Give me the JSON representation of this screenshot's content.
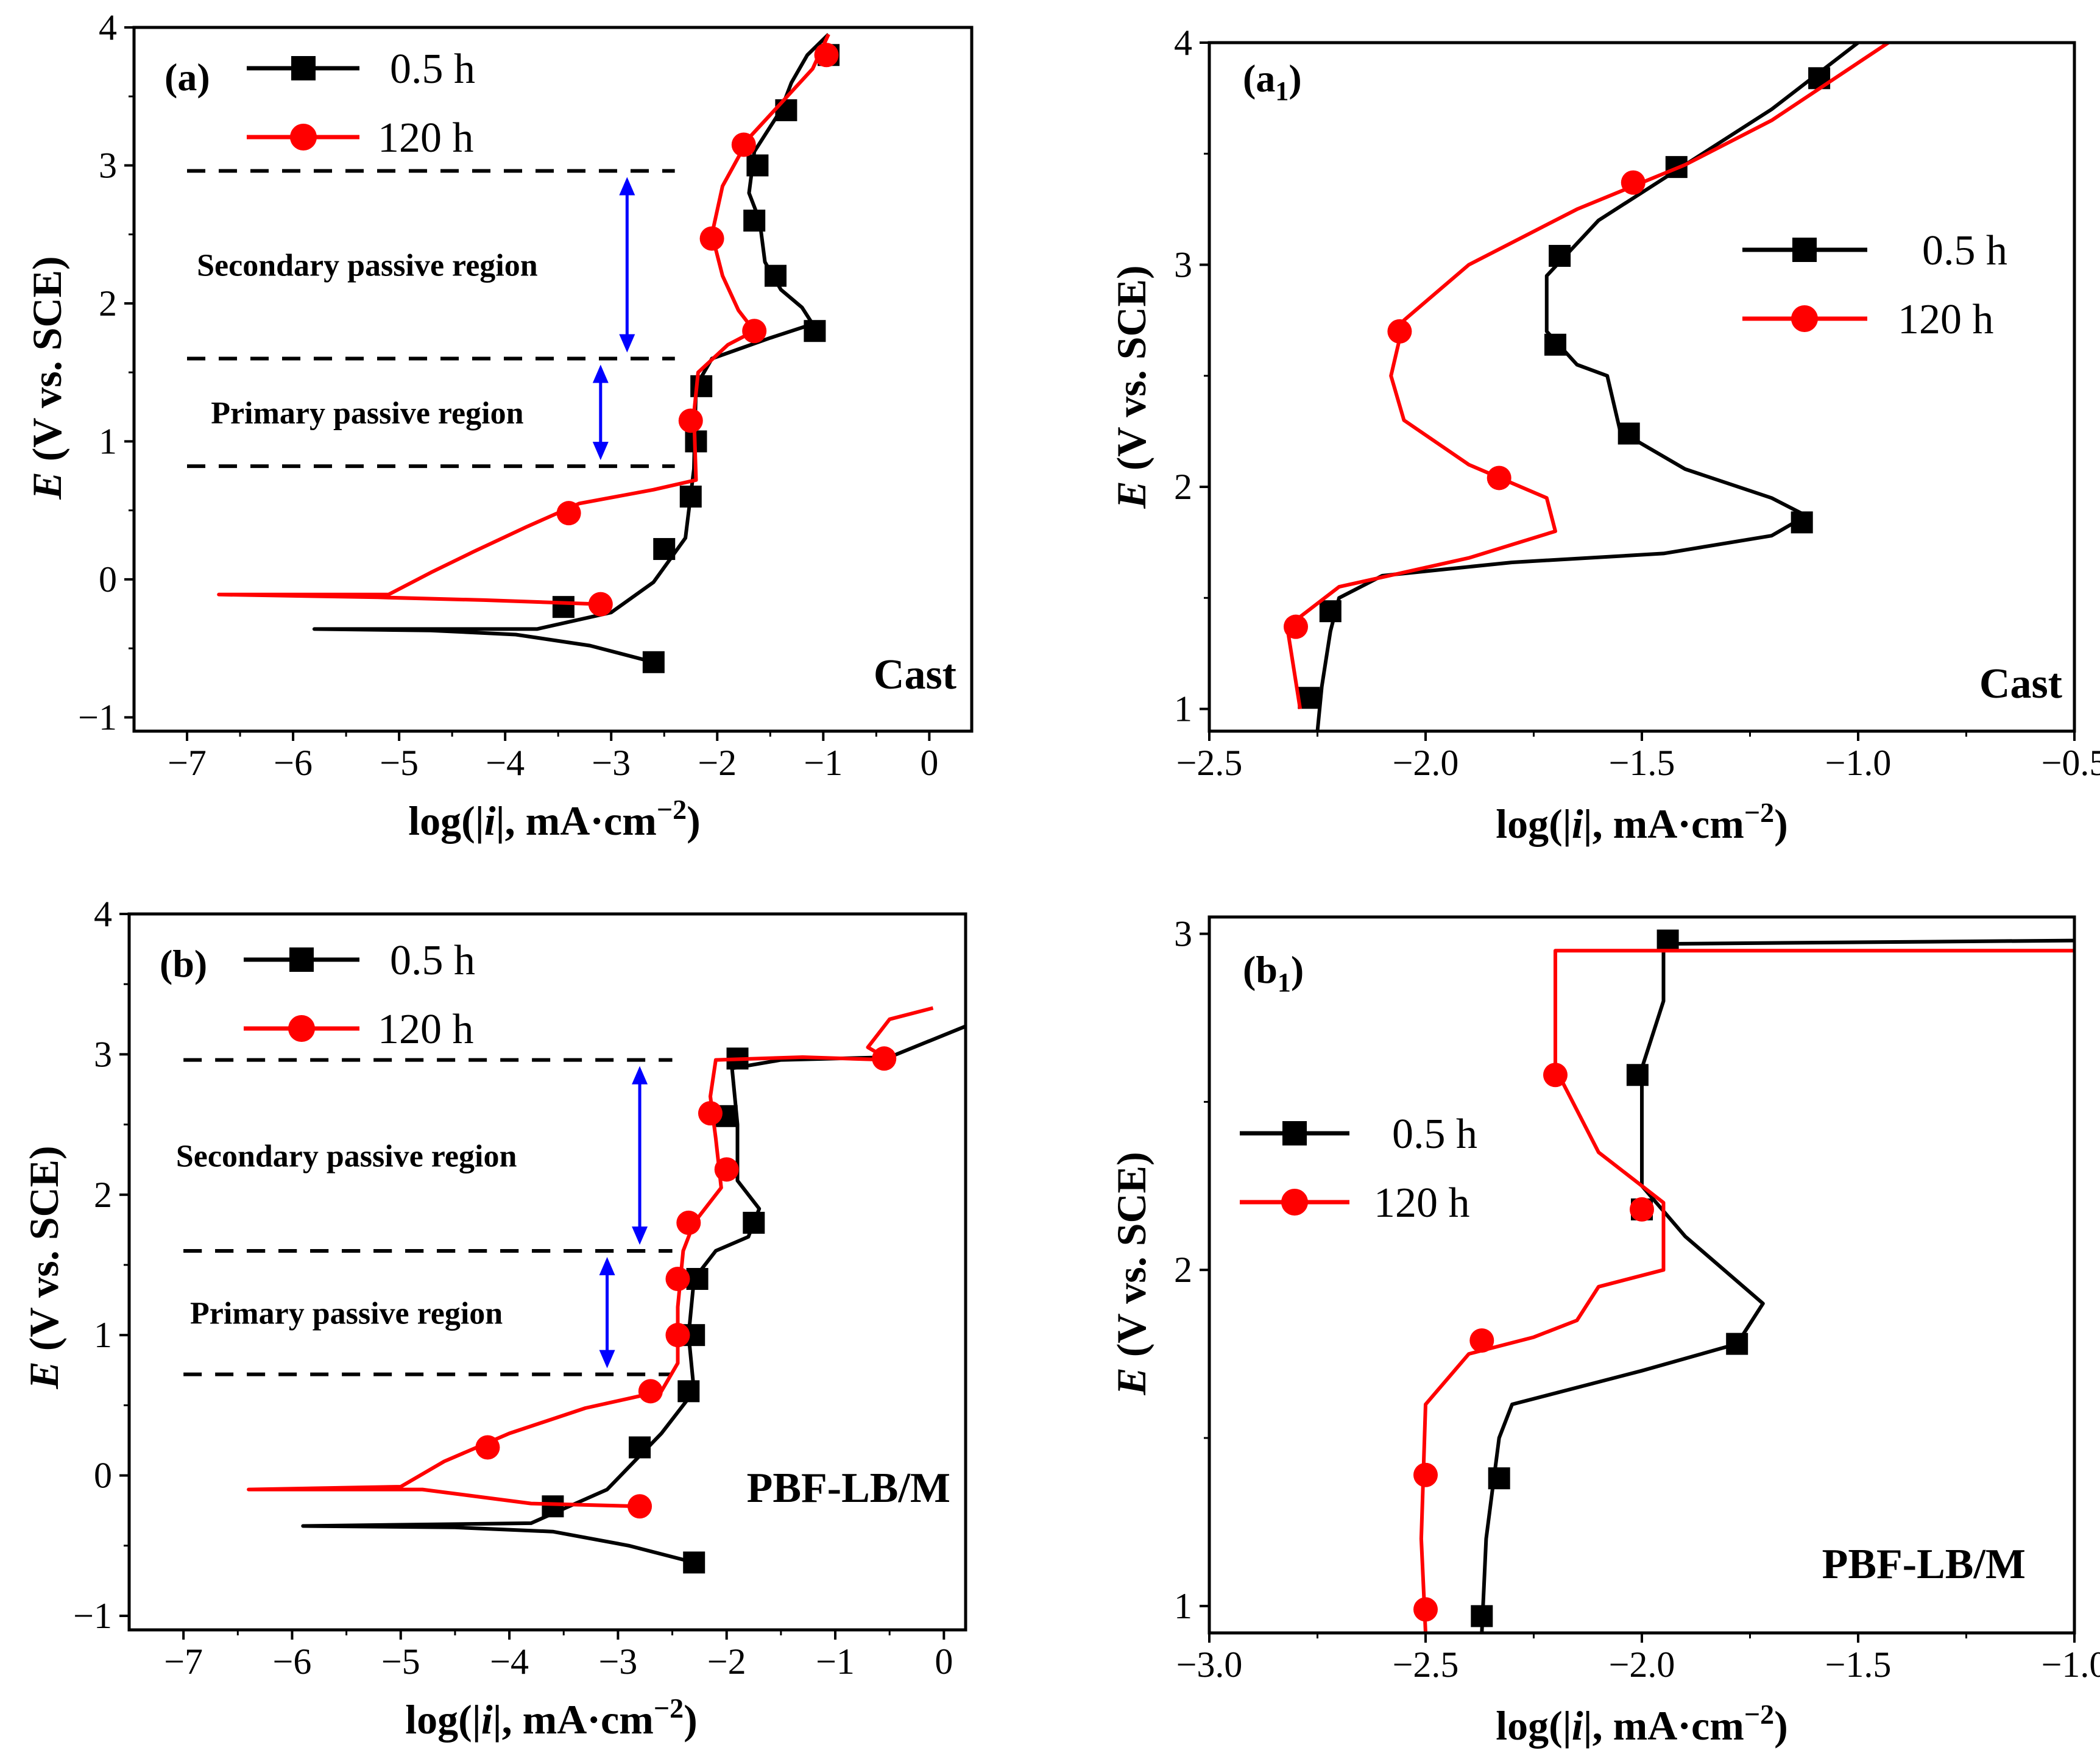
{
  "figure": {
    "colors": {
      "series_0_5h": "#000000",
      "series_120h": "#ff0000",
      "arrow": "#0000ff",
      "dash": "#000000"
    }
  },
  "chart_data": [
    {
      "id": "a",
      "panel_label": "(a)",
      "sample": "Cast",
      "type": "line",
      "xlabel": "log(|i|, mA·cm⁻²)",
      "ylabel": "E (V vs. SCE)",
      "xlim": [
        -7.5,
        0.4
      ],
      "ylim": [
        -1.1,
        4.0
      ],
      "xticks": [
        -7,
        -6,
        -5,
        -4,
        -3,
        -2,
        -1,
        0
      ],
      "xtick_labels": [
        "−7",
        "−6",
        "−5",
        "−4",
        "−3",
        "−2",
        "−1",
        "0"
      ],
      "yticks": [
        -1,
        0,
        1,
        2,
        3,
        4
      ],
      "ytick_labels": [
        "−1",
        "0",
        "1",
        "2",
        "3",
        "4"
      ],
      "legend": [
        "0.5 h",
        "120 h"
      ],
      "regions": [
        {
          "label": "Secondary passive region",
          "low": 1.6,
          "high": 2.96,
          "x_from": -7.0,
          "x_to": -2.4,
          "arrow_x": -2.85,
          "text_x": -5.3
        },
        {
          "label": "Primary passive region",
          "low": 0.82,
          "high": 1.6,
          "x_from": -7.0,
          "x_to": -2.4,
          "arrow_x": -3.1,
          "text_x": -5.3
        }
      ],
      "series": [
        {
          "name": "0.5 h",
          "points": [
            [
              -2.6,
              -0.6
            ],
            [
              -3.2,
              -0.48
            ],
            [
              -3.9,
              -0.4
            ],
            [
              -4.7,
              -0.37
            ],
            [
              -5.8,
              -0.36
            ],
            [
              -3.7,
              -0.36
            ],
            [
              -3.0,
              -0.24
            ],
            [
              -2.6,
              -0.02
            ],
            [
              -2.3,
              0.3
            ],
            [
              -2.22,
              0.8
            ],
            [
              -2.2,
              1.4
            ],
            [
              -2.05,
              1.6
            ],
            [
              -1.5,
              1.75
            ],
            [
              -1.1,
              1.85
            ],
            [
              -1.2,
              1.97
            ],
            [
              -1.4,
              2.1
            ],
            [
              -1.55,
              2.3
            ],
            [
              -1.6,
              2.6
            ],
            [
              -1.7,
              2.8
            ],
            [
              -1.65,
              3.1
            ],
            [
              -1.4,
              3.4
            ],
            [
              -1.3,
              3.6
            ],
            [
              -1.15,
              3.8
            ],
            [
              -0.95,
              3.95
            ]
          ],
          "markers": [
            [
              -2.6,
              -0.6
            ],
            [
              -3.45,
              -0.2
            ],
            [
              -2.5,
              0.22
            ],
            [
              -2.25,
              0.6
            ],
            [
              -2.2,
              1.0
            ],
            [
              -2.15,
              1.4
            ],
            [
              -1.08,
              1.8
            ],
            [
              -1.45,
              2.2
            ],
            [
              -1.65,
              2.6
            ],
            [
              -1.62,
              3.0
            ],
            [
              -1.35,
              3.4
            ],
            [
              -0.95,
              3.8
            ]
          ]
        },
        {
          "name": "120 h",
          "points": [
            [
              -3.1,
              -0.18
            ],
            [
              -4.2,
              -0.15
            ],
            [
              -5.2,
              -0.13
            ],
            [
              -6.7,
              -0.11
            ],
            [
              -5.1,
              -0.11
            ],
            [
              -4.7,
              0.05
            ],
            [
              -4.3,
              0.2
            ],
            [
              -3.8,
              0.38
            ],
            [
              -3.3,
              0.55
            ],
            [
              -2.6,
              0.65
            ],
            [
              -2.2,
              0.72
            ],
            [
              -2.22,
              1.2
            ],
            [
              -2.18,
              1.5
            ],
            [
              -1.9,
              1.7
            ],
            [
              -1.65,
              1.8
            ],
            [
              -1.8,
              1.95
            ],
            [
              -1.95,
              2.2
            ],
            [
              -2.05,
              2.5
            ],
            [
              -1.95,
              2.85
            ],
            [
              -1.7,
              3.2
            ],
            [
              -1.4,
              3.45
            ],
            [
              -1.1,
              3.7
            ],
            [
              -0.95,
              3.95
            ]
          ],
          "markers": [
            [
              -3.1,
              -0.18
            ],
            [
              -3.4,
              0.48
            ],
            [
              -2.25,
              1.15
            ],
            [
              -1.65,
              1.8
            ],
            [
              -2.05,
              2.47
            ],
            [
              -1.75,
              3.15
            ],
            [
              -0.97,
              3.8
            ]
          ]
        }
      ]
    },
    {
      "id": "a1",
      "panel_label": "(a",
      "panel_label_sub": "1",
      "panel_label_end": ")",
      "sample": "Cast",
      "type": "line",
      "xlabel": "log(|i|, mA·cm⁻²)",
      "ylabel": "E (V vs. SCE)",
      "xlim": [
        -2.5,
        -0.5
      ],
      "ylim": [
        0.9,
        4.0
      ],
      "xticks": [
        -2.5,
        -2.0,
        -1.5,
        -1.0,
        -0.5
      ],
      "xtick_labels": [
        "−2.5",
        "−2.0",
        "−1.5",
        "−1.0",
        "−0.5"
      ],
      "yticks": [
        1,
        2,
        3,
        4
      ],
      "ytick_labels": [
        "1",
        "2",
        "3",
        "4"
      ],
      "legend": [
        "0.5 h",
        "120 h"
      ],
      "series": [
        {
          "name": "0.5 h",
          "points": [
            [
              -2.25,
              0.9
            ],
            [
              -2.24,
              1.1
            ],
            [
              -2.22,
              1.35
            ],
            [
              -2.2,
              1.5
            ],
            [
              -2.1,
              1.6
            ],
            [
              -1.8,
              1.66
            ],
            [
              -1.45,
              1.7
            ],
            [
              -1.2,
              1.78
            ],
            [
              -1.12,
              1.87
            ],
            [
              -1.2,
              1.95
            ],
            [
              -1.4,
              2.08
            ],
            [
              -1.55,
              2.25
            ],
            [
              -1.58,
              2.5
            ],
            [
              -1.65,
              2.55
            ],
            [
              -1.72,
              2.7
            ],
            [
              -1.72,
              2.95
            ],
            [
              -1.6,
              3.2
            ],
            [
              -1.4,
              3.45
            ],
            [
              -1.2,
              3.7
            ],
            [
              -1.0,
              4.0
            ]
          ],
          "markers": [
            [
              -2.27,
              1.05
            ],
            [
              -2.22,
              1.44
            ],
            [
              -1.13,
              1.84
            ],
            [
              -1.53,
              2.24
            ],
            [
              -1.7,
              2.64
            ],
            [
              -1.69,
              3.04
            ],
            [
              -1.42,
              3.44
            ],
            [
              -1.09,
              3.84
            ]
          ]
        },
        {
          "name": "120 h",
          "points": [
            [
              -2.29,
              1.0
            ],
            [
              -2.32,
              1.37
            ],
            [
              -2.2,
              1.55
            ],
            [
              -1.9,
              1.68
            ],
            [
              -1.7,
              1.8
            ],
            [
              -1.72,
              1.95
            ],
            [
              -1.9,
              2.1
            ],
            [
              -2.05,
              2.3
            ],
            [
              -2.08,
              2.5
            ],
            [
              -2.05,
              2.75
            ],
            [
              -1.9,
              3.0
            ],
            [
              -1.65,
              3.25
            ],
            [
              -1.4,
              3.45
            ],
            [
              -1.2,
              3.65
            ],
            [
              -0.93,
              4.0
            ]
          ],
          "markers": [
            [
              -2.3,
              1.37
            ],
            [
              -1.83,
              2.04
            ],
            [
              -2.06,
              2.7
            ],
            [
              -1.52,
              3.37
            ]
          ]
        }
      ]
    },
    {
      "id": "b",
      "panel_label": "(b)",
      "sample": "PBF-LB/M",
      "type": "line",
      "xlabel": "log(|i|, mA·cm⁻²)",
      "ylabel": "E (V vs. SCE)",
      "xlim": [
        -7.5,
        0.2
      ],
      "ylim": [
        -1.1,
        4.0
      ],
      "xticks": [
        -7,
        -6,
        -5,
        -4,
        -3,
        -2,
        -1,
        0
      ],
      "xtick_labels": [
        "−7",
        "−6",
        "−5",
        "−4",
        "−3",
        "−2",
        "−1",
        "0"
      ],
      "yticks": [
        -1,
        0,
        1,
        2,
        3,
        4
      ],
      "ytick_labels": [
        "−1",
        "0",
        "1",
        "2",
        "3",
        "4"
      ],
      "legend": [
        "0.5 h",
        "120 h"
      ],
      "regions": [
        {
          "label": "Secondary passive region",
          "low": 1.6,
          "high": 2.96,
          "x_from": -7.0,
          "x_to": -2.5,
          "arrow_x": -2.8,
          "text_x": -5.5
        },
        {
          "label": "Primary passive region",
          "low": 0.72,
          "high": 1.6,
          "x_from": -7.0,
          "x_to": -2.5,
          "arrow_x": -3.1,
          "text_x": -5.5
        }
      ],
      "series": [
        {
          "name": "0.5 h",
          "points": [
            [
              -2.3,
              -0.62
            ],
            [
              -2.9,
              -0.5
            ],
            [
              -3.6,
              -0.4
            ],
            [
              -4.5,
              -0.37
            ],
            [
              -5.9,
              -0.36
            ],
            [
              -3.8,
              -0.34
            ],
            [
              -3.1,
              -0.1
            ],
            [
              -2.6,
              0.3
            ],
            [
              -2.3,
              0.6
            ],
            [
              -2.35,
              1.0
            ],
            [
              -2.3,
              1.4
            ],
            [
              -2.1,
              1.6
            ],
            [
              -1.8,
              1.7
            ],
            [
              -1.7,
              1.9
            ],
            [
              -1.9,
              2.1
            ],
            [
              -1.9,
              2.5
            ],
            [
              -1.95,
              2.9
            ],
            [
              -1.5,
              2.96
            ],
            [
              -0.5,
              2.98
            ],
            [
              0.2,
              3.2
            ]
          ],
          "markers": [
            [
              -2.3,
              -0.62
            ],
            [
              -3.6,
              -0.22
            ],
            [
              -2.8,
              0.2
            ],
            [
              -2.35,
              0.6
            ],
            [
              -2.3,
              1.0
            ],
            [
              -2.27,
              1.4
            ],
            [
              -1.75,
              1.8
            ],
            [
              -2.0,
              2.56
            ],
            [
              -1.9,
              2.97
            ]
          ]
        },
        {
          "name": "120 h",
          "points": [
            [
              -2.8,
              -0.22
            ],
            [
              -3.8,
              -0.2
            ],
            [
              -4.8,
              -0.1
            ],
            [
              -6.4,
              -0.1
            ],
            [
              -5.0,
              -0.08
            ],
            [
              -4.6,
              0.1
            ],
            [
              -4.0,
              0.3
            ],
            [
              -3.3,
              0.48
            ],
            [
              -2.6,
              0.6
            ],
            [
              -2.45,
              0.8
            ],
            [
              -2.45,
              1.2
            ],
            [
              -2.4,
              1.6
            ],
            [
              -2.3,
              1.8
            ],
            [
              -2.05,
              2.05
            ],
            [
              -2.1,
              2.4
            ],
            [
              -2.15,
              2.7
            ],
            [
              -2.1,
              2.96
            ],
            [
              -1.3,
              2.98
            ],
            [
              -0.5,
              2.96
            ],
            [
              -0.7,
              3.05
            ],
            [
              -0.5,
              3.25
            ],
            [
              -0.1,
              3.33
            ]
          ],
          "markers": [
            [
              -2.8,
              -0.22
            ],
            [
              -4.2,
              0.2
            ],
            [
              -2.7,
              0.6
            ],
            [
              -2.45,
              1.0
            ],
            [
              -2.45,
              1.4
            ],
            [
              -2.35,
              1.8
            ],
            [
              -2.0,
              2.18
            ],
            [
              -2.15,
              2.58
            ],
            [
              -0.55,
              2.97
            ]
          ]
        }
      ]
    },
    {
      "id": "b1",
      "panel_label": "(b",
      "panel_label_sub": "1",
      "panel_label_end": ")",
      "sample": "PBF-LB/M",
      "type": "line",
      "xlabel": "log(|i|, mA·cm⁻²)",
      "ylabel": "E (V vs. SCE)",
      "xlim": [
        -3.0,
        -1.0
      ],
      "ylim": [
        0.92,
        3.05
      ],
      "xticks": [
        -3.0,
        -2.5,
        -2.0,
        -1.5,
        -1.0
      ],
      "xtick_labels": [
        "−3.0",
        "−2.5",
        "−2.0",
        "−1.5",
        "−1.0"
      ],
      "yticks": [
        1,
        2,
        3
      ],
      "ytick_labels": [
        "1",
        "2",
        "3"
      ],
      "legend": [
        "0.5 h",
        "120 h"
      ],
      "series": [
        {
          "name": "0.5 h",
          "points": [
            [
              -2.37,
              0.92
            ],
            [
              -2.36,
              1.2
            ],
            [
              -2.33,
              1.5
            ],
            [
              -2.3,
              1.6
            ],
            [
              -2.0,
              1.7
            ],
            [
              -1.78,
              1.78
            ],
            [
              -1.72,
              1.9
            ],
            [
              -1.9,
              2.1
            ],
            [
              -2.0,
              2.25
            ],
            [
              -2.0,
              2.6
            ],
            [
              -1.95,
              2.8
            ],
            [
              -1.95,
              2.97
            ],
            [
              -1.0,
              2.98
            ]
          ],
          "markers": [
            [
              -2.37,
              0.97
            ],
            [
              -2.33,
              1.38
            ],
            [
              -1.78,
              1.78
            ],
            [
              -2.0,
              2.18
            ],
            [
              -2.01,
              2.58
            ],
            [
              -1.94,
              2.98
            ]
          ]
        },
        {
          "name": "120 h",
          "points": [
            [
              -2.5,
              0.92
            ],
            [
              -2.51,
              1.2
            ],
            [
              -2.5,
              1.6
            ],
            [
              -2.4,
              1.75
            ],
            [
              -2.25,
              1.8
            ],
            [
              -2.15,
              1.85
            ],
            [
              -2.1,
              1.95
            ],
            [
              -1.95,
              2.0
            ],
            [
              -1.95,
              2.2
            ],
            [
              -2.1,
              2.35
            ],
            [
              -2.2,
              2.6
            ],
            [
              -2.2,
              2.8
            ],
            [
              -2.2,
              2.95
            ],
            [
              -1.0,
              2.95
            ]
          ],
          "markers": [
            [
              -2.5,
              0.99
            ],
            [
              -2.5,
              1.39
            ],
            [
              -2.37,
              1.79
            ],
            [
              -2.0,
              2.18
            ],
            [
              -2.2,
              2.58
            ]
          ]
        }
      ]
    }
  ]
}
